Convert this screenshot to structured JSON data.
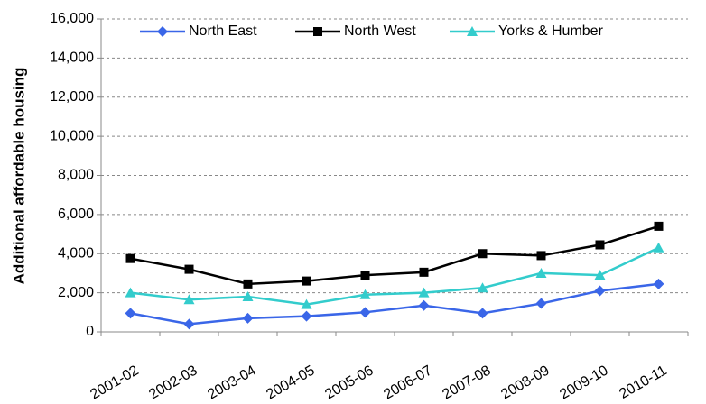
{
  "chart_data": {
    "type": "line",
    "y_label": "Additional affordable housing",
    "categories": [
      "2001-02",
      "2002-03",
      "2003-04",
      "2004-05",
      "2005-06",
      "2006-07",
      "2007-08",
      "2008-09",
      "2009-10",
      "2010-11"
    ],
    "series": [
      {
        "name": "North East",
        "color": "#3a66e8",
        "marker": "diamond",
        "values": [
          950,
          400,
          700,
          800,
          1000,
          1350,
          950,
          1450,
          2100,
          2450
        ]
      },
      {
        "name": "North West",
        "color": "#000000",
        "marker": "square",
        "values": [
          3750,
          3200,
          2450,
          2600,
          2900,
          3050,
          4000,
          3900,
          4450,
          5400
        ]
      },
      {
        "name": "Yorks & Humber",
        "color": "#33cccc",
        "marker": "triangle",
        "values": [
          2000,
          1650,
          1800,
          1400,
          1900,
          2000,
          2250,
          3000,
          2900,
          4300
        ]
      }
    ],
    "ylim": [
      0,
      16000
    ],
    "yticks": [
      0,
      {
        "value": 2000,
        "label": "2,000"
      },
      {
        "value": 4000,
        "label": "4,000"
      },
      {
        "value": 6000,
        "label": "6,000"
      },
      {
        "value": 8000,
        "label": "8,000"
      },
      {
        "value": 10000,
        "label": "10,000"
      },
      {
        "value": 12000,
        "label": "12,000"
      },
      {
        "value": 14000,
        "label": "14,000"
      },
      {
        "value": 16000,
        "label": "16,000"
      }
    ],
    "grid": true,
    "legend": "top"
  }
}
